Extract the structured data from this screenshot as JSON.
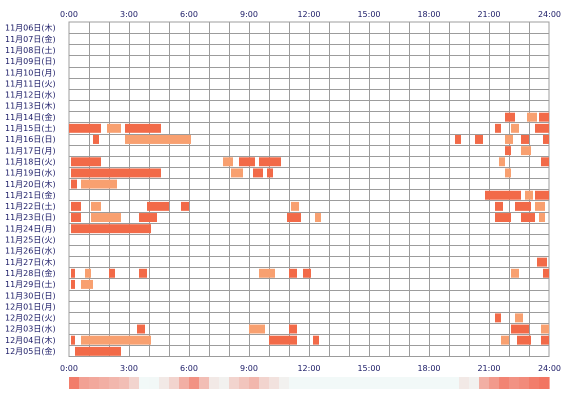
{
  "chart_data": {
    "type": "heatmap",
    "x_ticks": [
      "0:00",
      "3:00",
      "6:00",
      "9:00",
      "12:00",
      "15:00",
      "18:00",
      "21:00",
      "24:00"
    ],
    "xlim_hours": [
      0,
      24
    ],
    "grid": true,
    "colors": {
      "bar": "#f26a48",
      "bar_light": "#f8a070",
      "grid": "#9c9c9c",
      "text": "#1a1a66"
    },
    "days": [
      {
        "label": "11月06日(木)",
        "segments": []
      },
      {
        "label": "11月07日(金)",
        "segments": []
      },
      {
        "label": "11月08日(土)",
        "segments": []
      },
      {
        "label": "11月09日(日)",
        "segments": []
      },
      {
        "label": "11月10日(月)",
        "segments": []
      },
      {
        "label": "11月11日(火)",
        "segments": []
      },
      {
        "label": "11月12日(水)",
        "segments": []
      },
      {
        "label": "11月13日(木)",
        "segments": []
      },
      {
        "label": "11月14日(金)",
        "segments": [
          [
            21.8,
            22.3
          ],
          [
            22.9,
            23.4
          ],
          [
            23.5,
            24.0
          ]
        ]
      },
      {
        "label": "11月15日(土)",
        "segments": [
          [
            0.0,
            1.6
          ],
          [
            1.9,
            2.6
          ],
          [
            2.8,
            4.6
          ],
          [
            21.3,
            21.6
          ],
          [
            22.1,
            22.5
          ],
          [
            23.3,
            24.0
          ]
        ]
      },
      {
        "label": "11月16日(日)",
        "segments": [
          [
            1.2,
            1.5
          ],
          [
            2.8,
            6.1
          ],
          [
            19.3,
            19.6
          ],
          [
            20.3,
            20.7
          ],
          [
            21.8,
            22.2
          ],
          [
            22.6,
            23.0
          ],
          [
            23.7,
            24.0
          ]
        ]
      },
      {
        "label": "11月17日(月)",
        "segments": [
          [
            21.8,
            22.1
          ],
          [
            22.6,
            23.1
          ]
        ]
      },
      {
        "label": "11月18日(火)",
        "segments": [
          [
            0.1,
            1.6
          ],
          [
            7.7,
            8.2
          ],
          [
            8.5,
            9.3
          ],
          [
            9.5,
            10.6
          ],
          [
            21.5,
            21.8
          ],
          [
            23.6,
            24.0
          ]
        ]
      },
      {
        "label": "11月19日(水)",
        "segments": [
          [
            0.1,
            4.6
          ],
          [
            8.1,
            8.7
          ],
          [
            9.2,
            9.7
          ],
          [
            9.9,
            10.2
          ],
          [
            21.8,
            22.1
          ]
        ]
      },
      {
        "label": "11月20日(木)",
        "segments": [
          [
            0.1,
            0.4
          ],
          [
            0.6,
            2.4
          ]
        ]
      },
      {
        "label": "11月21日(金)",
        "segments": [
          [
            20.8,
            22.6
          ],
          [
            22.8,
            23.2
          ],
          [
            23.3,
            24.0
          ]
        ]
      },
      {
        "label": "11月22日(土)",
        "segments": [
          [
            0.1,
            0.6
          ],
          [
            1.1,
            1.6
          ],
          [
            3.9,
            5.0
          ],
          [
            5.6,
            6.0
          ],
          [
            11.1,
            11.5
          ],
          [
            21.3,
            21.7
          ],
          [
            22.3,
            23.1
          ],
          [
            23.3,
            23.8
          ]
        ]
      },
      {
        "label": "11月23日(日)",
        "segments": [
          [
            0.1,
            0.6
          ],
          [
            1.1,
            2.6
          ],
          [
            3.5,
            4.4
          ],
          [
            10.9,
            11.6
          ],
          [
            12.3,
            12.6
          ],
          [
            21.3,
            22.1
          ],
          [
            22.6,
            23.3
          ],
          [
            23.5,
            23.8
          ]
        ]
      },
      {
        "label": "11月24日(月)",
        "segments": [
          [
            0.1,
            4.1
          ]
        ]
      },
      {
        "label": "11月25日(火)",
        "segments": []
      },
      {
        "label": "11月26日(水)",
        "segments": []
      },
      {
        "label": "11月27日(木)",
        "segments": [
          [
            23.4,
            23.9
          ]
        ]
      },
      {
        "label": "11月28日(金)",
        "segments": [
          [
            0.1,
            0.3
          ],
          [
            0.8,
            1.1
          ],
          [
            2.0,
            2.3
          ],
          [
            3.5,
            3.9
          ],
          [
            9.5,
            10.3
          ],
          [
            11.0,
            11.4
          ],
          [
            11.7,
            12.1
          ],
          [
            22.1,
            22.5
          ],
          [
            23.7,
            24.0
          ]
        ]
      },
      {
        "label": "11月29日(土)",
        "segments": [
          [
            0.1,
            0.3
          ],
          [
            0.6,
            1.2
          ]
        ]
      },
      {
        "label": "11月30日(日)",
        "segments": []
      },
      {
        "label": "12月01日(月)",
        "segments": []
      },
      {
        "label": "12月02日(火)",
        "segments": [
          [
            21.3,
            21.6
          ],
          [
            22.3,
            22.7
          ]
        ]
      },
      {
        "label": "12月03日(水)",
        "segments": [
          [
            3.4,
            3.8
          ],
          [
            9.0,
            9.8
          ],
          [
            11.0,
            11.4
          ],
          [
            22.1,
            23.0
          ],
          [
            23.6,
            24.0
          ]
        ]
      },
      {
        "label": "12月04日(木)",
        "segments": [
          [
            0.1,
            0.3
          ],
          [
            0.6,
            4.1
          ],
          [
            10.0,
            11.4
          ],
          [
            12.2,
            12.5
          ],
          [
            21.6,
            22.0
          ],
          [
            22.4,
            23.1
          ],
          [
            23.6,
            24.0
          ]
        ]
      },
      {
        "label": "12月05日(金)",
        "segments": [
          [
            0.3,
            2.6
          ]
        ]
      }
    ],
    "summary_bar": {
      "shading": [
        0.9,
        0.65,
        0.6,
        0.55,
        0.5,
        0.45,
        0.3,
        0.0,
        0.05,
        0.15,
        0.3,
        0.55,
        0.75,
        0.45,
        0.15,
        0.1,
        0.3,
        0.4,
        0.5,
        0.3,
        0.2,
        0.1,
        0.0,
        0.0,
        0.0,
        0.0,
        0.0,
        0.0,
        0.0,
        0.0,
        0.0,
        0.0,
        0.0,
        0.0,
        0.0,
        0.0,
        0.0,
        0.0,
        0.0,
        0.15,
        0.1,
        0.55,
        0.7,
        0.85,
        0.75,
        0.8,
        0.9,
        0.95
      ]
    }
  }
}
